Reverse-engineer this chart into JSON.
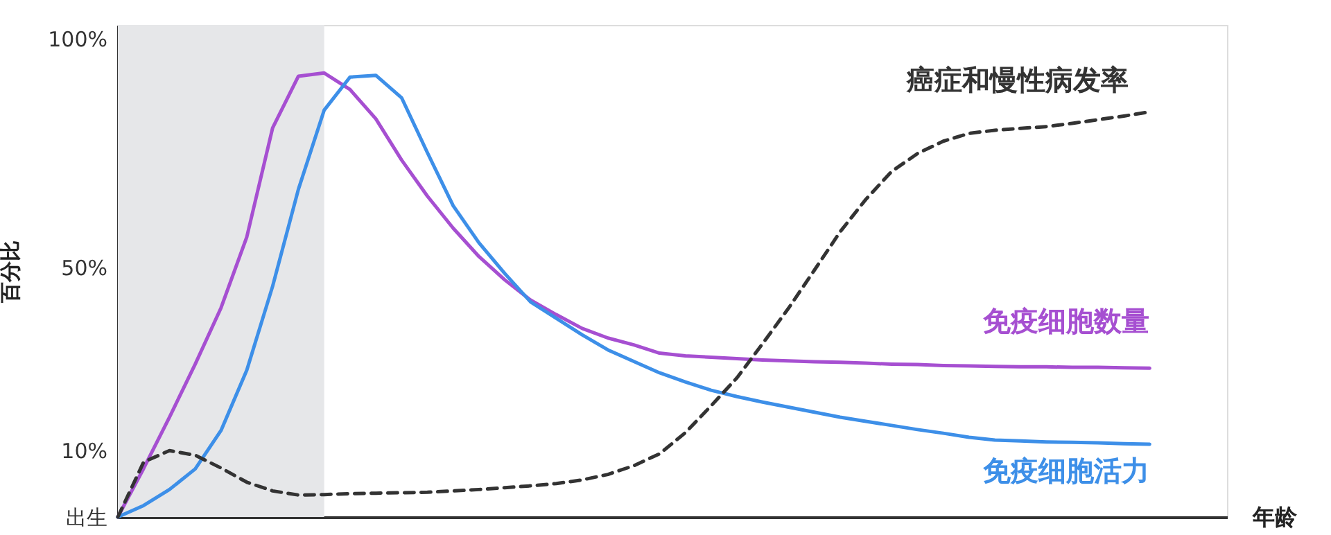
{
  "chart_data": {
    "type": "line",
    "ylabel": "百分比",
    "xlabel": "年龄",
    "categories": [
      null,
      null,
      null,
      null,
      null,
      null,
      null,
      null,
      null,
      null,
      null,
      null,
      null,
      null,
      null,
      null,
      null,
      null,
      null,
      null,
      null,
      null,
      null,
      null,
      null,
      null,
      null,
      null,
      null,
      null,
      null,
      null,
      null,
      null,
      null,
      null,
      null,
      null,
      null,
      null,
      null,
      null,
      null,
      null
    ],
    "ylim": [
      -4.5,
      103
    ],
    "yticks": [
      {
        "value": -4.5,
        "label": "出生"
      },
      {
        "value": 10,
        "label": "10%"
      },
      {
        "value": 50,
        "label": "50%"
      },
      {
        "value": 100,
        "label": "100%"
      }
    ],
    "tick_labels": "y",
    "grid": false,
    "legend": false,
    "marker": "none",
    "series": [
      {
        "name": "免疫细胞数量",
        "color": "#a64fd1",
        "line_style": "solid",
        "values": [
          -4.5,
          6.1,
          17.3,
          28.9,
          41.2,
          56.7,
          80.5,
          91.8,
          92.5,
          88.9,
          82.5,
          73.5,
          65.6,
          58.6,
          52.4,
          47.3,
          42.9,
          39.7,
          36.7,
          34.6,
          33.1,
          31.3,
          30.7,
          30.4,
          30.1,
          29.8,
          29.6,
          29.4,
          29.3,
          29.1,
          28.9,
          28.8,
          28.6,
          28.5,
          28.4,
          28.3,
          28.3,
          28.2,
          28.2,
          28.1,
          28.0,
          null,
          null,
          null
        ]
      },
      {
        "name": "免疫细胞活力",
        "color": "#3d8fe8",
        "line_style": "solid",
        "values": [
          -4.5,
          -2.0,
          1.5,
          6.0,
          14.4,
          27.6,
          45.9,
          67.1,
          84.4,
          91.6,
          92.0,
          87.1,
          75.1,
          63.5,
          55.4,
          48.7,
          42.5,
          38.9,
          35.3,
          32.0,
          29.5,
          27.0,
          25.0,
          23.2,
          21.8,
          20.6,
          19.5,
          18.4,
          17.3,
          16.4,
          15.5,
          14.6,
          13.8,
          12.9,
          12.3,
          12.1,
          11.9,
          11.8,
          11.7,
          11.5,
          11.4,
          null,
          null,
          null
        ]
      },
      {
        "name": "癌症和慢性病发率",
        "color": "#333333",
        "line_style": "dashed",
        "values": [
          -4.5,
          7.5,
          10.0,
          9.0,
          6.2,
          3.1,
          1.2,
          0.3,
          0.4,
          0.6,
          0.7,
          0.8,
          0.9,
          1.2,
          1.5,
          1.9,
          2.3,
          2.8,
          3.6,
          4.8,
          6.7,
          9.3,
          13.9,
          19.8,
          25.9,
          33.4,
          41.1,
          49.4,
          57.8,
          64.9,
          71.0,
          74.9,
          77.6,
          79.3,
          80.0,
          80.4,
          80.8,
          81.5,
          82.3,
          83.1,
          84.0,
          null,
          null,
          null
        ]
      }
    ]
  }
}
